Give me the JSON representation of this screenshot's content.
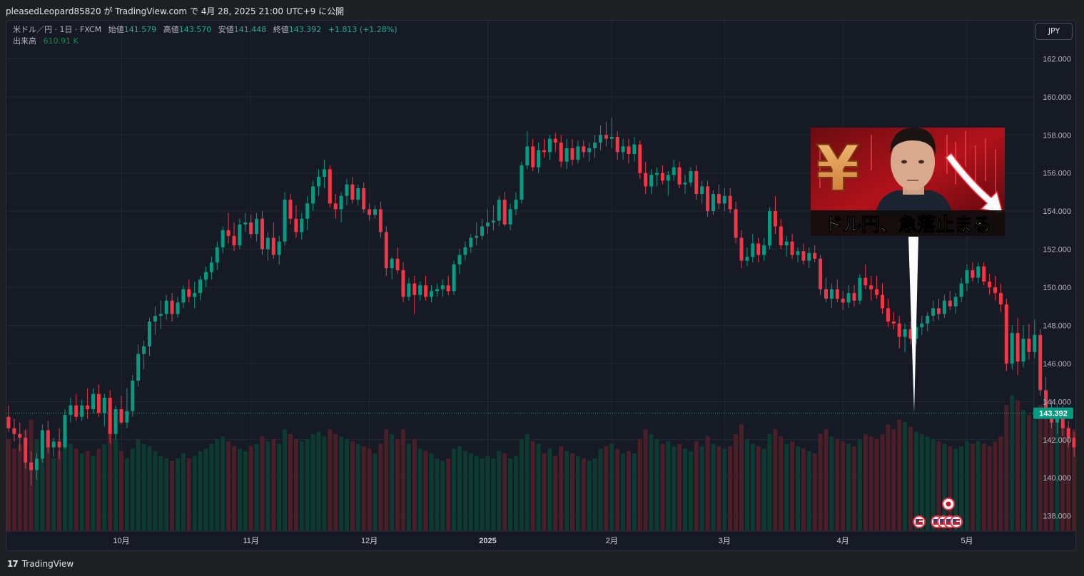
{
  "header": {
    "publisher_line": "pleasedLeopard85820 が TradingView.com で 4月 28, 2025 21:00 UTC+9 に公開"
  },
  "legend": {
    "symbol": "米ドル／円 · 1日 · FXCM",
    "open_label": "始値",
    "open_value": "141.579",
    "high_label": "高値",
    "high_value": "143.570",
    "low_label": "安値",
    "low_value": "141.448",
    "close_label": "終値",
    "close_value": "143.392",
    "change": "+1.813 (+1.28%)",
    "volume_label": "出来高",
    "volume_value": "610.91 K"
  },
  "currency_button": "JPY",
  "thumbnail": {
    "caption_white": "ドル円、",
    "caption_yellow": "急落止まる",
    "symbol_glyph": "¥"
  },
  "footer": {
    "brand": "TradingView",
    "logo_glyph": "17"
  },
  "colors": {
    "up": "#089981",
    "down": "#f23645",
    "background": "#161a25",
    "grid": "#242834",
    "price_tag": "#089981",
    "volume_up": "#0d3a31",
    "volume_down": "#4a1f27",
    "caption_yellow": "#f5e31a"
  },
  "chart_data": {
    "type": "candlestick",
    "symbol": "米ドル／円 · 1日 · FXCM",
    "ylim": [
      137.2,
      164.0
    ],
    "y_ticks": [
      "138.000",
      "140.000",
      "142.000",
      "144.000",
      "146.000",
      "148.000",
      "150.000",
      "152.000",
      "154.000",
      "156.000",
      "158.000",
      "160.000",
      "162.000"
    ],
    "x_ticks": [
      {
        "label": "10月",
        "index": 20
      },
      {
        "label": "11月",
        "index": 43
      },
      {
        "label": "12月",
        "index": 64
      },
      {
        "label": "2025",
        "index": 85
      },
      {
        "label": "2月",
        "index": 107
      },
      {
        "label": "3月",
        "index": 127
      },
      {
        "label": "4月",
        "index": 148
      },
      {
        "label": "5月",
        "index": 170
      }
    ],
    "last_price": "143.392",
    "candles": [
      [
        143.2,
        143.8,
        142.4,
        142.6,
        380
      ],
      [
        142.6,
        143.1,
        141.9,
        142.3,
        340
      ],
      [
        142.3,
        142.9,
        141.4,
        142.1,
        360
      ],
      [
        142.1,
        142.5,
        140.5,
        140.8,
        420
      ],
      [
        140.8,
        141.4,
        139.6,
        140.4,
        460
      ],
      [
        140.4,
        141.3,
        139.9,
        141.0,
        380
      ],
      [
        141.0,
        142.8,
        140.8,
        142.5,
        400
      ],
      [
        142.5,
        143.0,
        141.3,
        141.6,
        350
      ],
      [
        141.6,
        142.1,
        141.1,
        141.9,
        300
      ],
      [
        141.9,
        142.6,
        141.0,
        141.6,
        330
      ],
      [
        141.6,
        143.6,
        141.5,
        143.3,
        390
      ],
      [
        143.3,
        144.2,
        142.9,
        143.8,
        360
      ],
      [
        143.8,
        144.4,
        143.0,
        143.2,
        340
      ],
      [
        143.2,
        144.1,
        143.0,
        143.8,
        320
      ],
      [
        143.8,
        144.7,
        143.1,
        143.6,
        330
      ],
      [
        143.6,
        144.7,
        143.4,
        144.4,
        310
      ],
      [
        144.4,
        144.9,
        143.2,
        143.4,
        340
      ],
      [
        143.4,
        144.4,
        142.7,
        144.2,
        360
      ],
      [
        144.2,
        144.6,
        141.8,
        142.3,
        420
      ],
      [
        142.3,
        143.8,
        142.0,
        143.6,
        380
      ],
      [
        143.6,
        144.3,
        142.8,
        142.9,
        330
      ],
      [
        142.9,
        144.7,
        142.6,
        143.5,
        300
      ],
      [
        143.5,
        145.4,
        143.2,
        145.1,
        340
      ],
      [
        145.1,
        147.0,
        144.8,
        146.5,
        380
      ],
      [
        146.5,
        147.2,
        145.7,
        146.9,
        360
      ],
      [
        146.9,
        148.4,
        146.4,
        148.2,
        350
      ],
      [
        148.2,
        149.0,
        147.5,
        148.5,
        330
      ],
      [
        148.5,
        149.3,
        147.8,
        148.6,
        310
      ],
      [
        148.6,
        149.6,
        148.3,
        149.3,
        300
      ],
      [
        149.3,
        149.7,
        148.2,
        148.6,
        290
      ],
      [
        148.6,
        149.5,
        148.4,
        149.2,
        300
      ],
      [
        149.2,
        150.1,
        148.9,
        149.9,
        320
      ],
      [
        149.9,
        150.4,
        149.2,
        149.5,
        300
      ],
      [
        149.5,
        150.3,
        148.9,
        149.7,
        310
      ],
      [
        149.7,
        150.6,
        149.3,
        150.4,
        330
      ],
      [
        150.4,
        151.1,
        150.0,
        150.8,
        340
      ],
      [
        150.8,
        151.6,
        150.4,
        151.3,
        360
      ],
      [
        151.3,
        152.4,
        150.9,
        152.1,
        380
      ],
      [
        152.1,
        153.2,
        151.8,
        153.0,
        390
      ],
      [
        153.0,
        153.9,
        152.3,
        152.7,
        370
      ],
      [
        152.7,
        153.4,
        151.9,
        152.2,
        350
      ],
      [
        152.2,
        153.6,
        152.0,
        153.3,
        340
      ],
      [
        153.3,
        153.9,
        152.9,
        153.4,
        330
      ],
      [
        153.4,
        153.8,
        152.6,
        152.8,
        350
      ],
      [
        152.8,
        153.9,
        152.4,
        153.6,
        360
      ],
      [
        153.6,
        154.0,
        151.7,
        152.0,
        390
      ],
      [
        152.0,
        152.9,
        151.4,
        152.6,
        370
      ],
      [
        152.6,
        153.4,
        151.5,
        151.7,
        380
      ],
      [
        151.7,
        152.7,
        151.2,
        152.4,
        360
      ],
      [
        152.4,
        155.0,
        152.2,
        154.6,
        420
      ],
      [
        154.6,
        154.9,
        153.3,
        153.6,
        400
      ],
      [
        153.6,
        154.3,
        152.6,
        152.9,
        380
      ],
      [
        152.9,
        153.9,
        152.5,
        153.6,
        370
      ],
      [
        153.6,
        154.8,
        153.0,
        154.4,
        380
      ],
      [
        154.4,
        155.6,
        154.0,
        155.3,
        400
      ],
      [
        155.3,
        156.2,
        154.8,
        155.8,
        410
      ],
      [
        155.8,
        156.7,
        155.2,
        156.2,
        390
      ],
      [
        156.2,
        156.4,
        154.2,
        154.4,
        420
      ],
      [
        154.4,
        154.9,
        153.6,
        154.1,
        400
      ],
      [
        154.1,
        155.0,
        153.4,
        154.8,
        390
      ],
      [
        154.8,
        155.7,
        154.3,
        155.4,
        380
      ],
      [
        155.4,
        155.8,
        154.4,
        154.6,
        370
      ],
      [
        154.6,
        155.4,
        154.3,
        155.2,
        360
      ],
      [
        155.2,
        155.5,
        153.9,
        154.1,
        350
      ],
      [
        154.1,
        154.4,
        153.5,
        153.8,
        340
      ],
      [
        153.8,
        154.3,
        153.6,
        154.1,
        320
      ],
      [
        154.1,
        154.5,
        152.6,
        152.9,
        360
      ],
      [
        152.9,
        153.2,
        150.6,
        151.0,
        420
      ],
      [
        151.0,
        151.6,
        150.4,
        151.5,
        400
      ],
      [
        151.5,
        152.1,
        150.7,
        150.9,
        380
      ],
      [
        150.9,
        151.3,
        149.2,
        149.5,
        420
      ],
      [
        149.5,
        150.5,
        149.3,
        150.2,
        360
      ],
      [
        150.2,
        150.6,
        148.6,
        149.6,
        380
      ],
      [
        149.6,
        150.3,
        149.3,
        150.1,
        340
      ],
      [
        150.1,
        150.6,
        149.3,
        149.5,
        330
      ],
      [
        149.5,
        150.1,
        149.2,
        149.8,
        320
      ],
      [
        149.8,
        150.2,
        149.5,
        149.9,
        300
      ],
      [
        149.9,
        150.4,
        149.5,
        150.1,
        290
      ],
      [
        150.1,
        150.6,
        149.6,
        149.8,
        300
      ],
      [
        149.8,
        151.4,
        149.6,
        151.2,
        340
      ],
      [
        151.2,
        152.0,
        150.7,
        151.7,
        350
      ],
      [
        151.7,
        152.4,
        151.4,
        152.1,
        330
      ],
      [
        152.1,
        152.8,
        151.8,
        152.6,
        320
      ],
      [
        152.6,
        153.4,
        152.2,
        152.7,
        310
      ],
      [
        152.7,
        153.6,
        152.5,
        153.2,
        300
      ],
      [
        153.2,
        154.1,
        152.8,
        153.4,
        310
      ],
      [
        153.4,
        154.3,
        153.0,
        153.5,
        300
      ],
      [
        153.5,
        154.8,
        153.2,
        154.6,
        330
      ],
      [
        154.6,
        155.0,
        153.2,
        153.3,
        320
      ],
      [
        153.3,
        154.4,
        153.0,
        154.1,
        300
      ],
      [
        154.1,
        155.0,
        153.8,
        154.6,
        310
      ],
      [
        154.6,
        156.6,
        154.4,
        156.4,
        380
      ],
      [
        156.4,
        158.2,
        156.2,
        157.4,
        400
      ],
      [
        157.4,
        157.8,
        156.1,
        156.3,
        370
      ],
      [
        156.3,
        157.6,
        156.0,
        157.2,
        360
      ],
      [
        157.2,
        157.8,
        156.8,
        157.1,
        320
      ],
      [
        157.1,
        158.0,
        156.7,
        157.8,
        340
      ],
      [
        157.8,
        158.1,
        157.1,
        157.6,
        310
      ],
      [
        157.6,
        158.0,
        156.3,
        156.6,
        350
      ],
      [
        156.6,
        157.8,
        156.2,
        157.3,
        330
      ],
      [
        157.3,
        157.8,
        156.4,
        156.7,
        320
      ],
      [
        156.7,
        157.7,
        156.5,
        157.4,
        310
      ],
      [
        157.4,
        157.7,
        156.8,
        157.1,
        300
      ],
      [
        157.1,
        157.6,
        156.6,
        157.3,
        290
      ],
      [
        157.3,
        158.0,
        156.8,
        157.6,
        300
      ],
      [
        157.6,
        158.5,
        157.2,
        158.0,
        340
      ],
      [
        158.0,
        158.7,
        157.4,
        157.8,
        350
      ],
      [
        157.8,
        158.9,
        157.3,
        157.9,
        360
      ],
      [
        157.9,
        158.2,
        156.7,
        157.1,
        340
      ],
      [
        157.1,
        157.8,
        156.7,
        157.4,
        320
      ],
      [
        157.4,
        157.8,
        156.5,
        157.0,
        330
      ],
      [
        157.0,
        157.9,
        156.6,
        157.5,
        320
      ],
      [
        157.5,
        157.7,
        155.7,
        156.0,
        380
      ],
      [
        156.0,
        156.6,
        154.9,
        155.3,
        420
      ],
      [
        155.3,
        156.2,
        154.9,
        155.9,
        400
      ],
      [
        155.9,
        156.3,
        155.3,
        156.0,
        380
      ],
      [
        156.0,
        156.4,
        155.4,
        155.6,
        360
      ],
      [
        155.6,
        156.1,
        154.8,
        155.9,
        370
      ],
      [
        155.9,
        156.7,
        155.6,
        156.3,
        350
      ],
      [
        156.3,
        156.6,
        155.2,
        155.4,
        360
      ],
      [
        155.4,
        155.9,
        154.9,
        155.5,
        340
      ],
      [
        155.5,
        156.3,
        155.3,
        156.1,
        330
      ],
      [
        156.1,
        156.4,
        154.6,
        154.9,
        370
      ],
      [
        154.9,
        155.6,
        154.4,
        155.3,
        350
      ],
      [
        155.3,
        155.6,
        153.7,
        154.0,
        390
      ],
      [
        154.0,
        155.1,
        153.8,
        154.9,
        360
      ],
      [
        154.9,
        155.4,
        154.1,
        154.4,
        350
      ],
      [
        154.4,
        155.2,
        154.0,
        154.8,
        340
      ],
      [
        154.8,
        155.2,
        153.9,
        154.1,
        350
      ],
      [
        154.1,
        154.5,
        152.3,
        152.6,
        400
      ],
      [
        152.6,
        153.0,
        151.0,
        151.4,
        440
      ],
      [
        151.4,
        152.1,
        151.1,
        151.6,
        380
      ],
      [
        151.6,
        152.8,
        151.3,
        152.3,
        360
      ],
      [
        152.3,
        152.6,
        151.3,
        151.7,
        350
      ],
      [
        151.7,
        152.6,
        151.4,
        152.2,
        340
      ],
      [
        152.2,
        154.2,
        152.0,
        154.0,
        400
      ],
      [
        154.0,
        154.8,
        152.8,
        153.2,
        420
      ],
      [
        153.2,
        153.6,
        152.0,
        152.2,
        390
      ],
      [
        152.2,
        152.7,
        151.6,
        152.4,
        360
      ],
      [
        152.4,
        152.8,
        151.5,
        151.7,
        370
      ],
      [
        151.7,
        152.1,
        151.3,
        151.9,
        350
      ],
      [
        151.9,
        152.3,
        151.2,
        151.4,
        340
      ],
      [
        151.4,
        152.1,
        151.0,
        151.8,
        330
      ],
      [
        151.8,
        152.2,
        151.3,
        151.5,
        320
      ],
      [
        151.5,
        151.7,
        149.6,
        149.9,
        400
      ],
      [
        149.9,
        150.5,
        149.2,
        149.4,
        420
      ],
      [
        149.4,
        150.2,
        148.9,
        149.9,
        390
      ],
      [
        149.9,
        150.4,
        149.2,
        149.4,
        380
      ],
      [
        149.4,
        149.8,
        148.8,
        149.2,
        370
      ],
      [
        149.2,
        150.1,
        148.9,
        149.7,
        360
      ],
      [
        149.7,
        150.1,
        149.0,
        149.3,
        350
      ],
      [
        149.3,
        150.7,
        149.1,
        150.5,
        380
      ],
      [
        150.5,
        151.2,
        149.9,
        150.1,
        400
      ],
      [
        150.1,
        150.6,
        149.3,
        149.9,
        390
      ],
      [
        149.9,
        150.6,
        149.4,
        149.6,
        380
      ],
      [
        149.6,
        150.2,
        148.6,
        148.9,
        400
      ],
      [
        148.9,
        149.4,
        147.9,
        148.2,
        440
      ],
      [
        148.2,
        148.7,
        147.8,
        148.1,
        420
      ],
      [
        148.1,
        148.5,
        146.8,
        147.4,
        460
      ],
      [
        147.4,
        148.1,
        146.6,
        147.8,
        450
      ],
      [
        147.8,
        148.2,
        147.0,
        147.3,
        430
      ],
      [
        147.3,
        148.1,
        147.0,
        147.9,
        410
      ],
      [
        147.9,
        148.5,
        147.5,
        148.1,
        400
      ],
      [
        148.1,
        148.7,
        147.7,
        148.5,
        390
      ],
      [
        148.5,
        149.3,
        148.2,
        148.9,
        380
      ],
      [
        148.9,
        149.4,
        148.3,
        148.6,
        370
      ],
      [
        148.6,
        149.6,
        148.4,
        149.3,
        360
      ],
      [
        149.3,
        149.8,
        148.8,
        149.0,
        350
      ],
      [
        149.0,
        149.7,
        148.6,
        149.5,
        340
      ],
      [
        149.5,
        150.5,
        149.2,
        150.2,
        350
      ],
      [
        150.2,
        151.2,
        149.8,
        150.9,
        370
      ],
      [
        150.9,
        151.3,
        150.3,
        150.5,
        360
      ],
      [
        150.5,
        151.3,
        150.2,
        151.1,
        370
      ],
      [
        151.1,
        151.3,
        150.1,
        150.3,
        360
      ],
      [
        150.3,
        150.7,
        149.6,
        150.0,
        350
      ],
      [
        150.0,
        150.6,
        149.3,
        149.7,
        370
      ],
      [
        149.7,
        150.2,
        148.7,
        149.1,
        390
      ],
      [
        149.1,
        149.4,
        145.6,
        146.0,
        520
      ],
      [
        146.0,
        148.0,
        145.7,
        147.6,
        560
      ],
      [
        147.6,
        148.4,
        145.4,
        146.1,
        540
      ],
      [
        146.1,
        148.0,
        145.8,
        147.3,
        500
      ],
      [
        147.3,
        148.1,
        146.2,
        146.6,
        480
      ],
      [
        146.6,
        148.3,
        146.3,
        147.5,
        460
      ],
      [
        147.5,
        147.8,
        144.3,
        144.6,
        520
      ],
      [
        144.6,
        145.3,
        143.4,
        143.6,
        500
      ],
      [
        143.6,
        144.1,
        142.6,
        142.9,
        480
      ],
      [
        142.9,
        143.8,
        142.3,
        143.4,
        460
      ],
      [
        143.4,
        143.8,
        142.2,
        142.6,
        440
      ],
      [
        142.6,
        143.0,
        141.6,
        142.1,
        430
      ],
      [
        142.1,
        142.4,
        141.1,
        141.6,
        420
      ],
      [
        141.6,
        142.5,
        141.4,
        142.3,
        400
      ],
      [
        142.3,
        142.6,
        141.2,
        141.5,
        390
      ],
      [
        141.5,
        141.8,
        140.0,
        140.7,
        420
      ],
      [
        140.7,
        142.2,
        140.6,
        141.9,
        400
      ],
      [
        141.5,
        143.6,
        141.4,
        143.4,
        610
      ]
    ]
  }
}
